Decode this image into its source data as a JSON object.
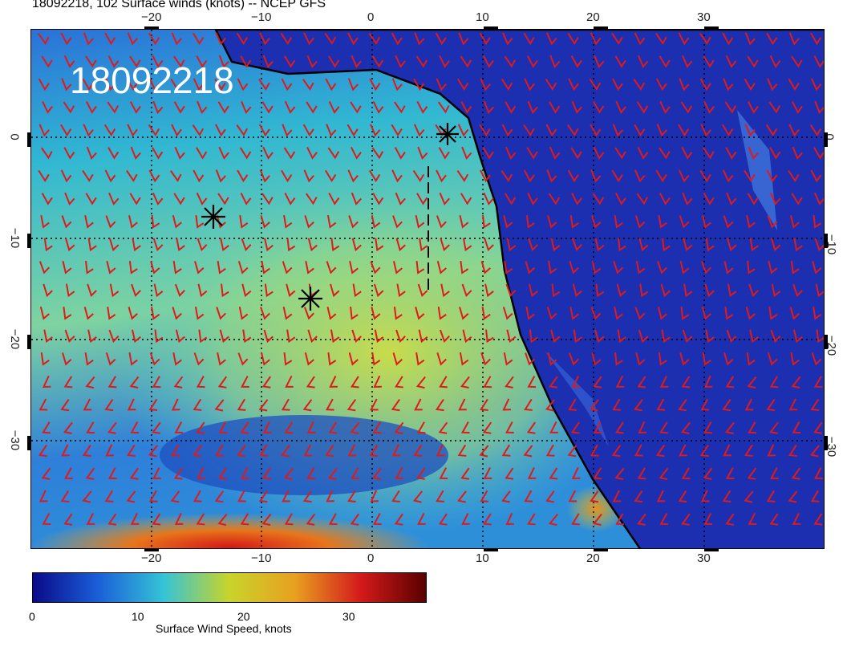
{
  "header": {
    "title": "18092218, 102 Surface winds (knots) -- NCEP GFS",
    "stamp": "18092218"
  },
  "map": {
    "lon_ticks_top": [
      "−20",
      "−10",
      "0",
      "10",
      "20",
      "30"
    ],
    "lon_ticks_bottom": [
      "−20",
      "−10",
      "0",
      "10",
      "20",
      "30"
    ],
    "lat_ticks_left": [
      "0",
      "−10",
      "−20",
      "−30"
    ],
    "lat_ticks_right": [
      "0",
      "−10",
      "−20",
      "−30"
    ],
    "markers": [
      "star-marker-1",
      "star-marker-2",
      "star-marker-3"
    ]
  },
  "colorbar": {
    "title": "Surface Wind Speed, knots",
    "labels": [
      "0",
      "10",
      "20",
      "30"
    ],
    "colors": [
      "#0a0a8a",
      "#1a5fd8",
      "#35c4d6",
      "#c8d42a",
      "#e8a020",
      "#d41a1a",
      "#5a0000"
    ]
  }
}
